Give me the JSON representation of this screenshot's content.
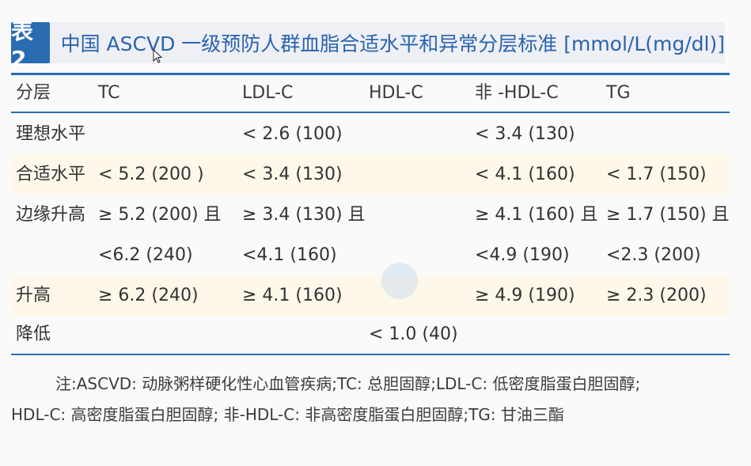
{
  "title": {
    "badge": "表 2",
    "text": "中国 ASCVD 一级预防人群血脂合适水平和异常分层标准 [mmol/L(mg/dl)]"
  },
  "table": {
    "headers": [
      "分层",
      "TC",
      "LDL-C",
      "HDL-C",
      "非 -HDL-C",
      "TG"
    ],
    "rows": [
      [
        "理想水平",
        "",
        "< 2.6 (100)",
        "",
        "< 3.4 (130)",
        ""
      ],
      [
        "合适水平",
        "< 5.2 (200 )",
        "< 3.4 (130)",
        "",
        "< 4.1 (160)",
        "< 1.7 (150)"
      ],
      [
        "边缘升高",
        "≥ 5.2 (200) 且",
        "≥ 3.4 (130) 且",
        "",
        "≥ 4.1 (160) 且",
        "≥ 1.7 (150) 且"
      ],
      [
        "",
        "<6.2 (240)",
        "<4.1 (160)",
        "",
        "<4.9 (190)",
        "<2.3 (200)"
      ],
      [
        "升高",
        "≥ 6.2 (240)",
        "≥ 4.1 (160)",
        "",
        "≥ 4.9 (190)",
        "≥ 2.3 (200)"
      ],
      [
        "降低",
        "",
        "",
        "< 1.0 (40)",
        "",
        ""
      ]
    ]
  },
  "footnote": {
    "line1": "注:ASCVD: 动脉粥样硬化性心血管疾病;TC: 总胆固醇;LDL-C: 低密度脂蛋白胆固醇;",
    "line2": "HDL-C: 高密度脂蛋白胆固醇; 非-HDL-C: 非高密度脂蛋白胆固醇;TG: 甘油三酯"
  },
  "colors": {
    "accent": "#2a6cb1",
    "title_bg": "#eef0f6",
    "row_shade": "#fdf8e9"
  }
}
